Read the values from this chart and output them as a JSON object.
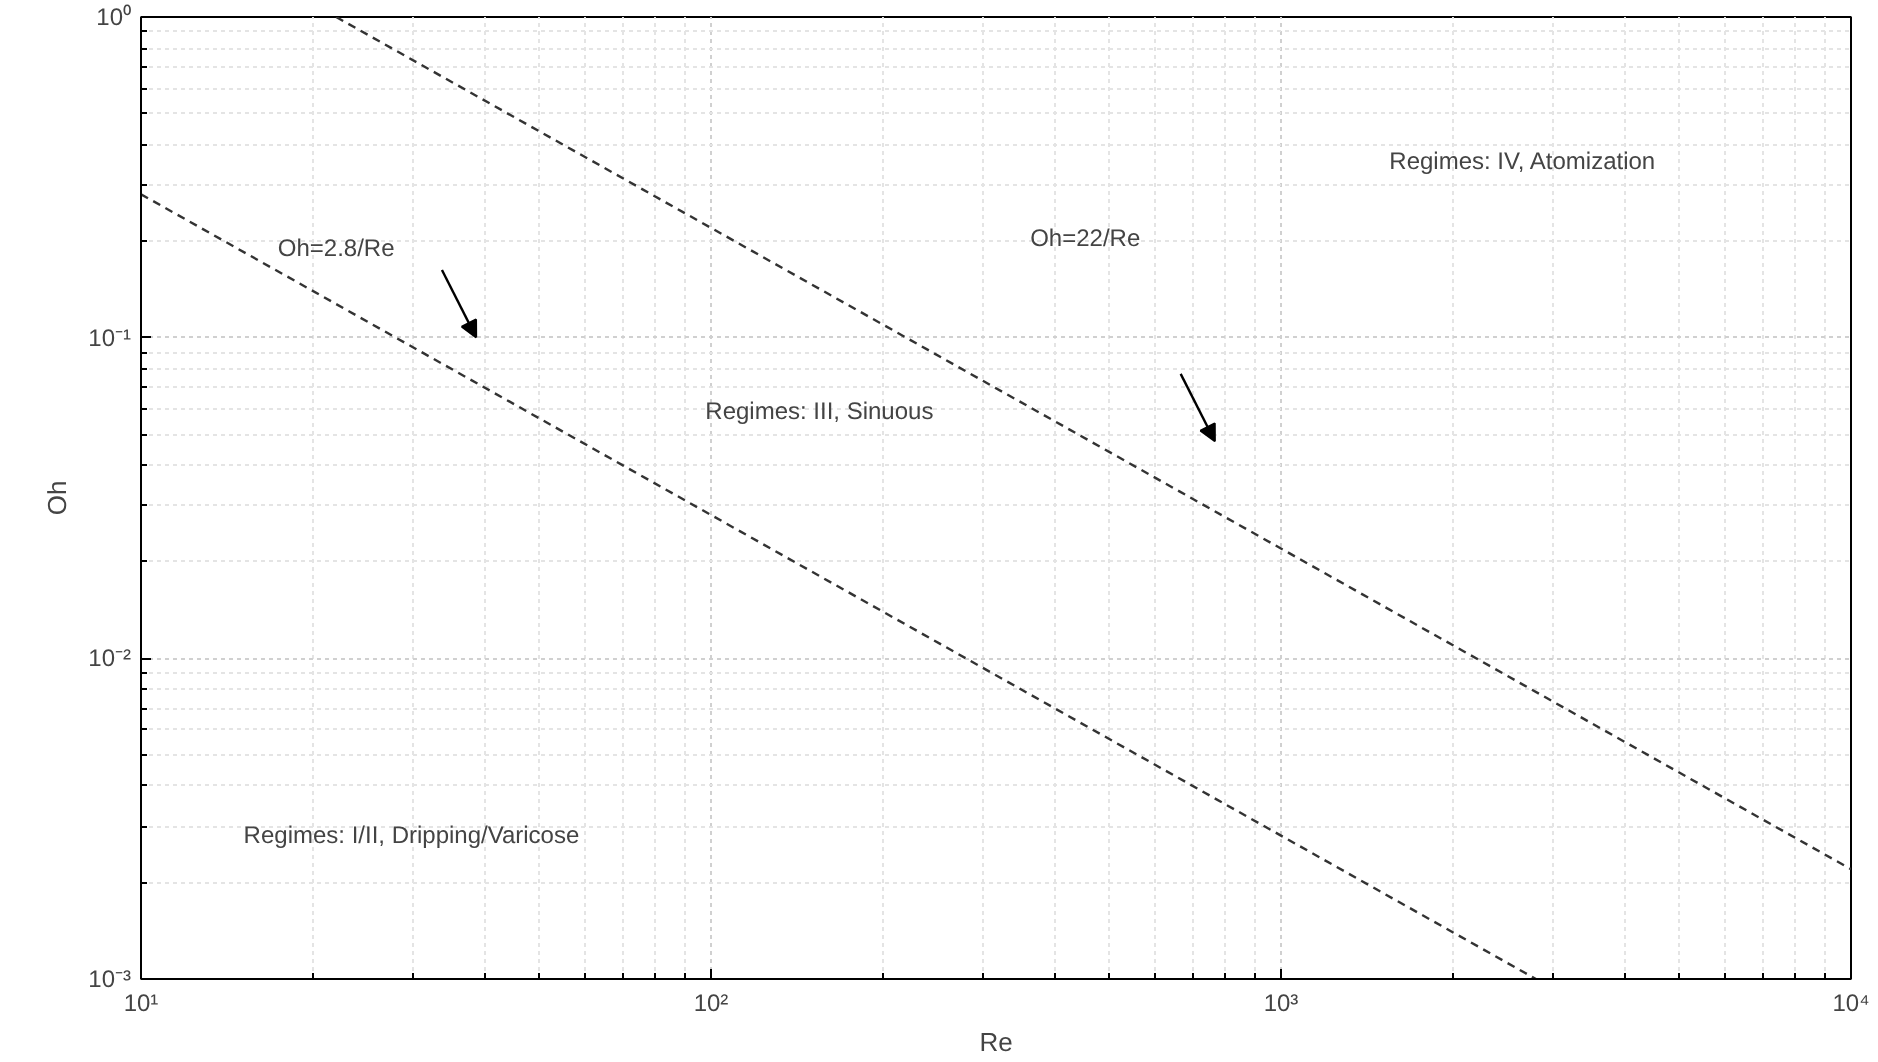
{
  "chart_data": {
    "type": "line",
    "xlabel": "Re",
    "ylabel": "Oh",
    "log": "xy",
    "grid": true,
    "line_style": "dashed",
    "marker": "none",
    "xlim": [
      10,
      10000
    ],
    "ylim": [
      0.001,
      1
    ],
    "xticks": [
      {
        "value": 10,
        "label": "10¹"
      },
      {
        "value": 100,
        "label": "10²"
      },
      {
        "value": 1000,
        "label": "10³"
      },
      {
        "value": 10000,
        "label": "10⁴"
      }
    ],
    "yticks": [
      {
        "value": 0.001,
        "label": "10⁻³"
      },
      {
        "value": 0.01,
        "label": "10⁻²"
      },
      {
        "value": 0.1,
        "label": "10⁻¹"
      },
      {
        "value": 1,
        "label": "10⁰"
      }
    ],
    "series": [
      {
        "color": "#333333",
        "x": [
          10,
          2800
        ],
        "values": [
          0.28,
          0.001
        ]
      },
      {
        "color": "#333333",
        "x": [
          22,
          10000
        ],
        "values": [
          1,
          0.0022
        ]
      }
    ],
    "annotations": [
      "Oh=2.8/Re",
      "Oh=22/Re",
      "Regimes: IV, Atomization",
      "Regimes: III, Sinuous",
      "Regimes: I/II, Dripping/Varicose"
    ]
  }
}
